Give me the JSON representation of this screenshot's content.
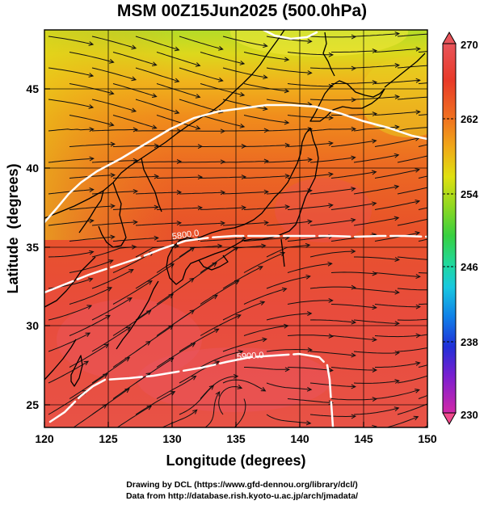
{
  "title": "MSM 00Z15Jun2025 (500.0hPa)",
  "credits": {
    "line1": "Drawing by DCL (https://www.gfd-dennou.org/library/dcl/)",
    "line2": "Data from http://database.rish.kyoto-u.ac.jp/arch/jmadata/"
  },
  "map": {
    "xlabel": "Longitude (degrees)",
    "ylabel": "Latitude  (degrees)",
    "lon_range": [
      120,
      150
    ],
    "lat_range": [
      22.4,
      47.6
    ],
    "lon_ticks": [
      "120",
      "125",
      "130",
      "135",
      "140",
      "145",
      "150"
    ],
    "lat_ticks": [
      "25",
      "30",
      "35",
      "40",
      "45"
    ],
    "contour_labels": [
      "5800.0",
      "5900.0"
    ]
  },
  "colorbar": {
    "labels": [
      "270",
      "262",
      "254",
      "246",
      "238",
      "230"
    ],
    "min": 230,
    "max": 270,
    "colors": [
      "#f04a8c",
      "#d228a8",
      "#7a1fd0",
      "#2030d8",
      "#1080e8",
      "#18c8e0",
      "#20d8a0",
      "#38d040",
      "#90d820",
      "#e0e010",
      "#f0a818",
      "#f06a20",
      "#e84a30",
      "#e8545a"
    ]
  }
}
